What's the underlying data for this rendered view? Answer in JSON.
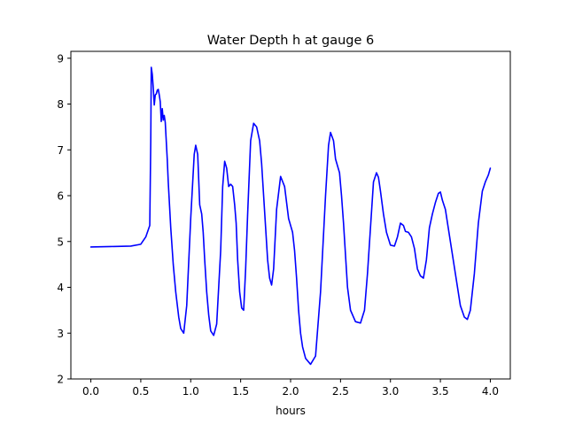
{
  "chart_data": {
    "type": "line",
    "title": "Water Depth h at gauge 6",
    "xlabel": "hours",
    "ylabel": "",
    "xlim": [
      -0.2,
      4.2
    ],
    "ylim": [
      2,
      9.15
    ],
    "xticks": [
      0.0,
      0.5,
      1.0,
      1.5,
      2.0,
      2.5,
      3.0,
      3.5,
      4.0
    ],
    "xtick_labels": [
      "0.0",
      "0.5",
      "1.0",
      "1.5",
      "2.0",
      "2.5",
      "3.0",
      "3.5",
      "4.0"
    ],
    "yticks": [
      2,
      3,
      4,
      5,
      6,
      7,
      8,
      9
    ],
    "ytick_labels": [
      "2",
      "3",
      "4",
      "5",
      "6",
      "7",
      "8",
      "9"
    ],
    "grid": false,
    "series": [
      {
        "color": "#0000ff",
        "x": [
          0.0,
          0.2,
          0.4,
          0.5,
          0.55,
          0.59,
          0.6,
          0.605,
          0.615,
          0.625,
          0.635,
          0.645,
          0.655,
          0.665,
          0.675,
          0.685,
          0.695,
          0.705,
          0.715,
          0.725,
          0.735,
          0.745,
          0.755,
          0.765,
          0.775,
          0.785,
          0.8,
          0.825,
          0.85,
          0.88,
          0.9,
          0.93,
          0.96,
          1.0,
          1.035,
          1.05,
          1.07,
          1.09,
          1.11,
          1.125,
          1.14,
          1.16,
          1.18,
          1.2,
          1.23,
          1.26,
          1.3,
          1.32,
          1.34,
          1.36,
          1.38,
          1.4,
          1.42,
          1.44,
          1.455,
          1.47,
          1.49,
          1.51,
          1.53,
          1.55,
          1.57,
          1.6,
          1.63,
          1.66,
          1.69,
          1.71,
          1.73,
          1.75,
          1.77,
          1.79,
          1.81,
          1.83,
          1.86,
          1.9,
          1.94,
          1.98,
          2.02,
          2.04,
          2.06,
          2.08,
          2.1,
          2.12,
          2.15,
          2.2,
          2.25,
          2.3,
          2.35,
          2.38,
          2.4,
          2.43,
          2.45,
          2.47,
          2.49,
          2.51,
          2.53,
          2.55,
          2.57,
          2.6,
          2.65,
          2.7,
          2.74,
          2.77,
          2.8,
          2.83,
          2.86,
          2.88,
          2.9,
          2.93,
          2.96,
          3.0,
          3.04,
          3.07,
          3.1,
          3.13,
          3.15,
          3.18,
          3.21,
          3.24,
          3.27,
          3.3,
          3.33,
          3.36,
          3.39,
          3.42,
          3.45,
          3.48,
          3.5,
          3.52,
          3.55,
          3.6,
          3.65,
          3.7,
          3.74,
          3.77,
          3.8,
          3.84,
          3.88,
          3.92,
          3.95,
          3.98,
          4.0
        ],
        "y": [
          4.88,
          4.89,
          4.9,
          4.94,
          5.1,
          5.35,
          7.2,
          8.8,
          8.65,
          8.35,
          7.98,
          8.2,
          8.22,
          8.3,
          8.32,
          8.2,
          8.05,
          7.62,
          7.9,
          7.65,
          7.75,
          7.6,
          7.2,
          6.8,
          6.3,
          5.9,
          5.3,
          4.5,
          3.9,
          3.35,
          3.1,
          3.0,
          3.6,
          5.5,
          6.9,
          7.1,
          6.9,
          5.8,
          5.6,
          5.2,
          4.6,
          3.9,
          3.4,
          3.05,
          2.95,
          3.2,
          4.8,
          6.2,
          6.75,
          6.6,
          6.2,
          6.25,
          6.2,
          5.8,
          5.4,
          4.6,
          3.9,
          3.55,
          3.5,
          4.4,
          5.6,
          7.2,
          7.58,
          7.5,
          7.2,
          6.7,
          6.0,
          5.3,
          4.6,
          4.2,
          4.05,
          4.4,
          5.7,
          6.42,
          6.2,
          5.5,
          5.2,
          4.8,
          4.2,
          3.5,
          3.0,
          2.7,
          2.45,
          2.32,
          2.5,
          3.9,
          6.0,
          7.1,
          7.38,
          7.2,
          6.8,
          6.65,
          6.5,
          6.0,
          5.4,
          4.7,
          4.0,
          3.5,
          3.25,
          3.22,
          3.5,
          4.3,
          5.3,
          6.3,
          6.5,
          6.4,
          6.1,
          5.6,
          5.2,
          4.92,
          4.9,
          5.1,
          5.4,
          5.35,
          5.22,
          5.2,
          5.1,
          4.85,
          4.4,
          4.25,
          4.2,
          4.6,
          5.3,
          5.6,
          5.85,
          6.05,
          6.08,
          5.9,
          5.7,
          5.0,
          4.3,
          3.6,
          3.35,
          3.3,
          3.5,
          4.3,
          5.4,
          6.1,
          6.3,
          6.45,
          6.6
        ]
      }
    ]
  }
}
